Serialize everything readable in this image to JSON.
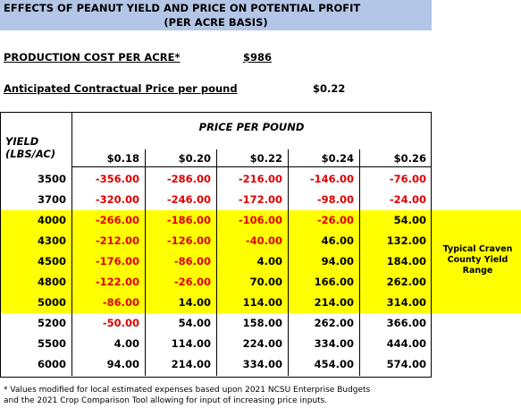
{
  "header": {
    "title": "EFFECTS OF PEANUT YIELD AND PRICE ON POTENTIAL PROFIT",
    "subtitle": "(PER ACRE BASIS)"
  },
  "production_cost": {
    "label": "PRODUCTION COST PER ACRE*",
    "value": "$986"
  },
  "contract_price": {
    "label": "Anticipated Contractual Price per pound",
    "value": "$0.22"
  },
  "table": {
    "column_group": "PRICE PER POUND",
    "row_header": [
      "YIELD",
      "(LBS/AC)"
    ],
    "columns": [
      "$0.18",
      "$0.20",
      "$0.22",
      "$0.24",
      "$0.26"
    ],
    "rows": [
      {
        "yield": "3500",
        "cells": [
          "-356.00",
          "-286.00",
          "-216.00",
          "-146.00",
          "-76.00"
        ],
        "highlighted": false
      },
      {
        "yield": "3700",
        "cells": [
          "-320.00",
          "-246.00",
          "-172.00",
          "-98.00",
          "-24.00"
        ],
        "highlighted": false
      },
      {
        "yield": "4000",
        "cells": [
          "-266.00",
          "-186.00",
          "-106.00",
          "-26.00",
          "54.00"
        ],
        "highlighted": true
      },
      {
        "yield": "4300",
        "cells": [
          "-212.00",
          "-126.00",
          "-40.00",
          "46.00",
          "132.00"
        ],
        "highlighted": true
      },
      {
        "yield": "4500",
        "cells": [
          "-176.00",
          "-86.00",
          "4.00",
          "94.00",
          "184.00"
        ],
        "highlighted": true
      },
      {
        "yield": "4800",
        "cells": [
          "-122.00",
          "-26.00",
          "70.00",
          "166.00",
          "262.00"
        ],
        "highlighted": true
      },
      {
        "yield": "5000",
        "cells": [
          "-86.00",
          "14.00",
          "114.00",
          "214.00",
          "314.00"
        ],
        "highlighted": true
      },
      {
        "yield": "5200",
        "cells": [
          "-50.00",
          "54.00",
          "158.00",
          "262.00",
          "366.00"
        ],
        "highlighted": false
      },
      {
        "yield": "5500",
        "cells": [
          "4.00",
          "114.00",
          "224.00",
          "334.00",
          "444.00"
        ],
        "highlighted": false
      },
      {
        "yield": "6000",
        "cells": [
          "94.00",
          "214.00",
          "334.00",
          "454.00",
          "574.00"
        ],
        "highlighted": false
      }
    ],
    "highlight_note": "Typical Craven County Yield Range"
  },
  "footnote": [
    "* Values modified for local estimated expenses based upon 2021 NCSU Enterprise Budgets",
    "and the 2021 Crop Comparison Tool allowing for input of increasing price inputs."
  ]
}
